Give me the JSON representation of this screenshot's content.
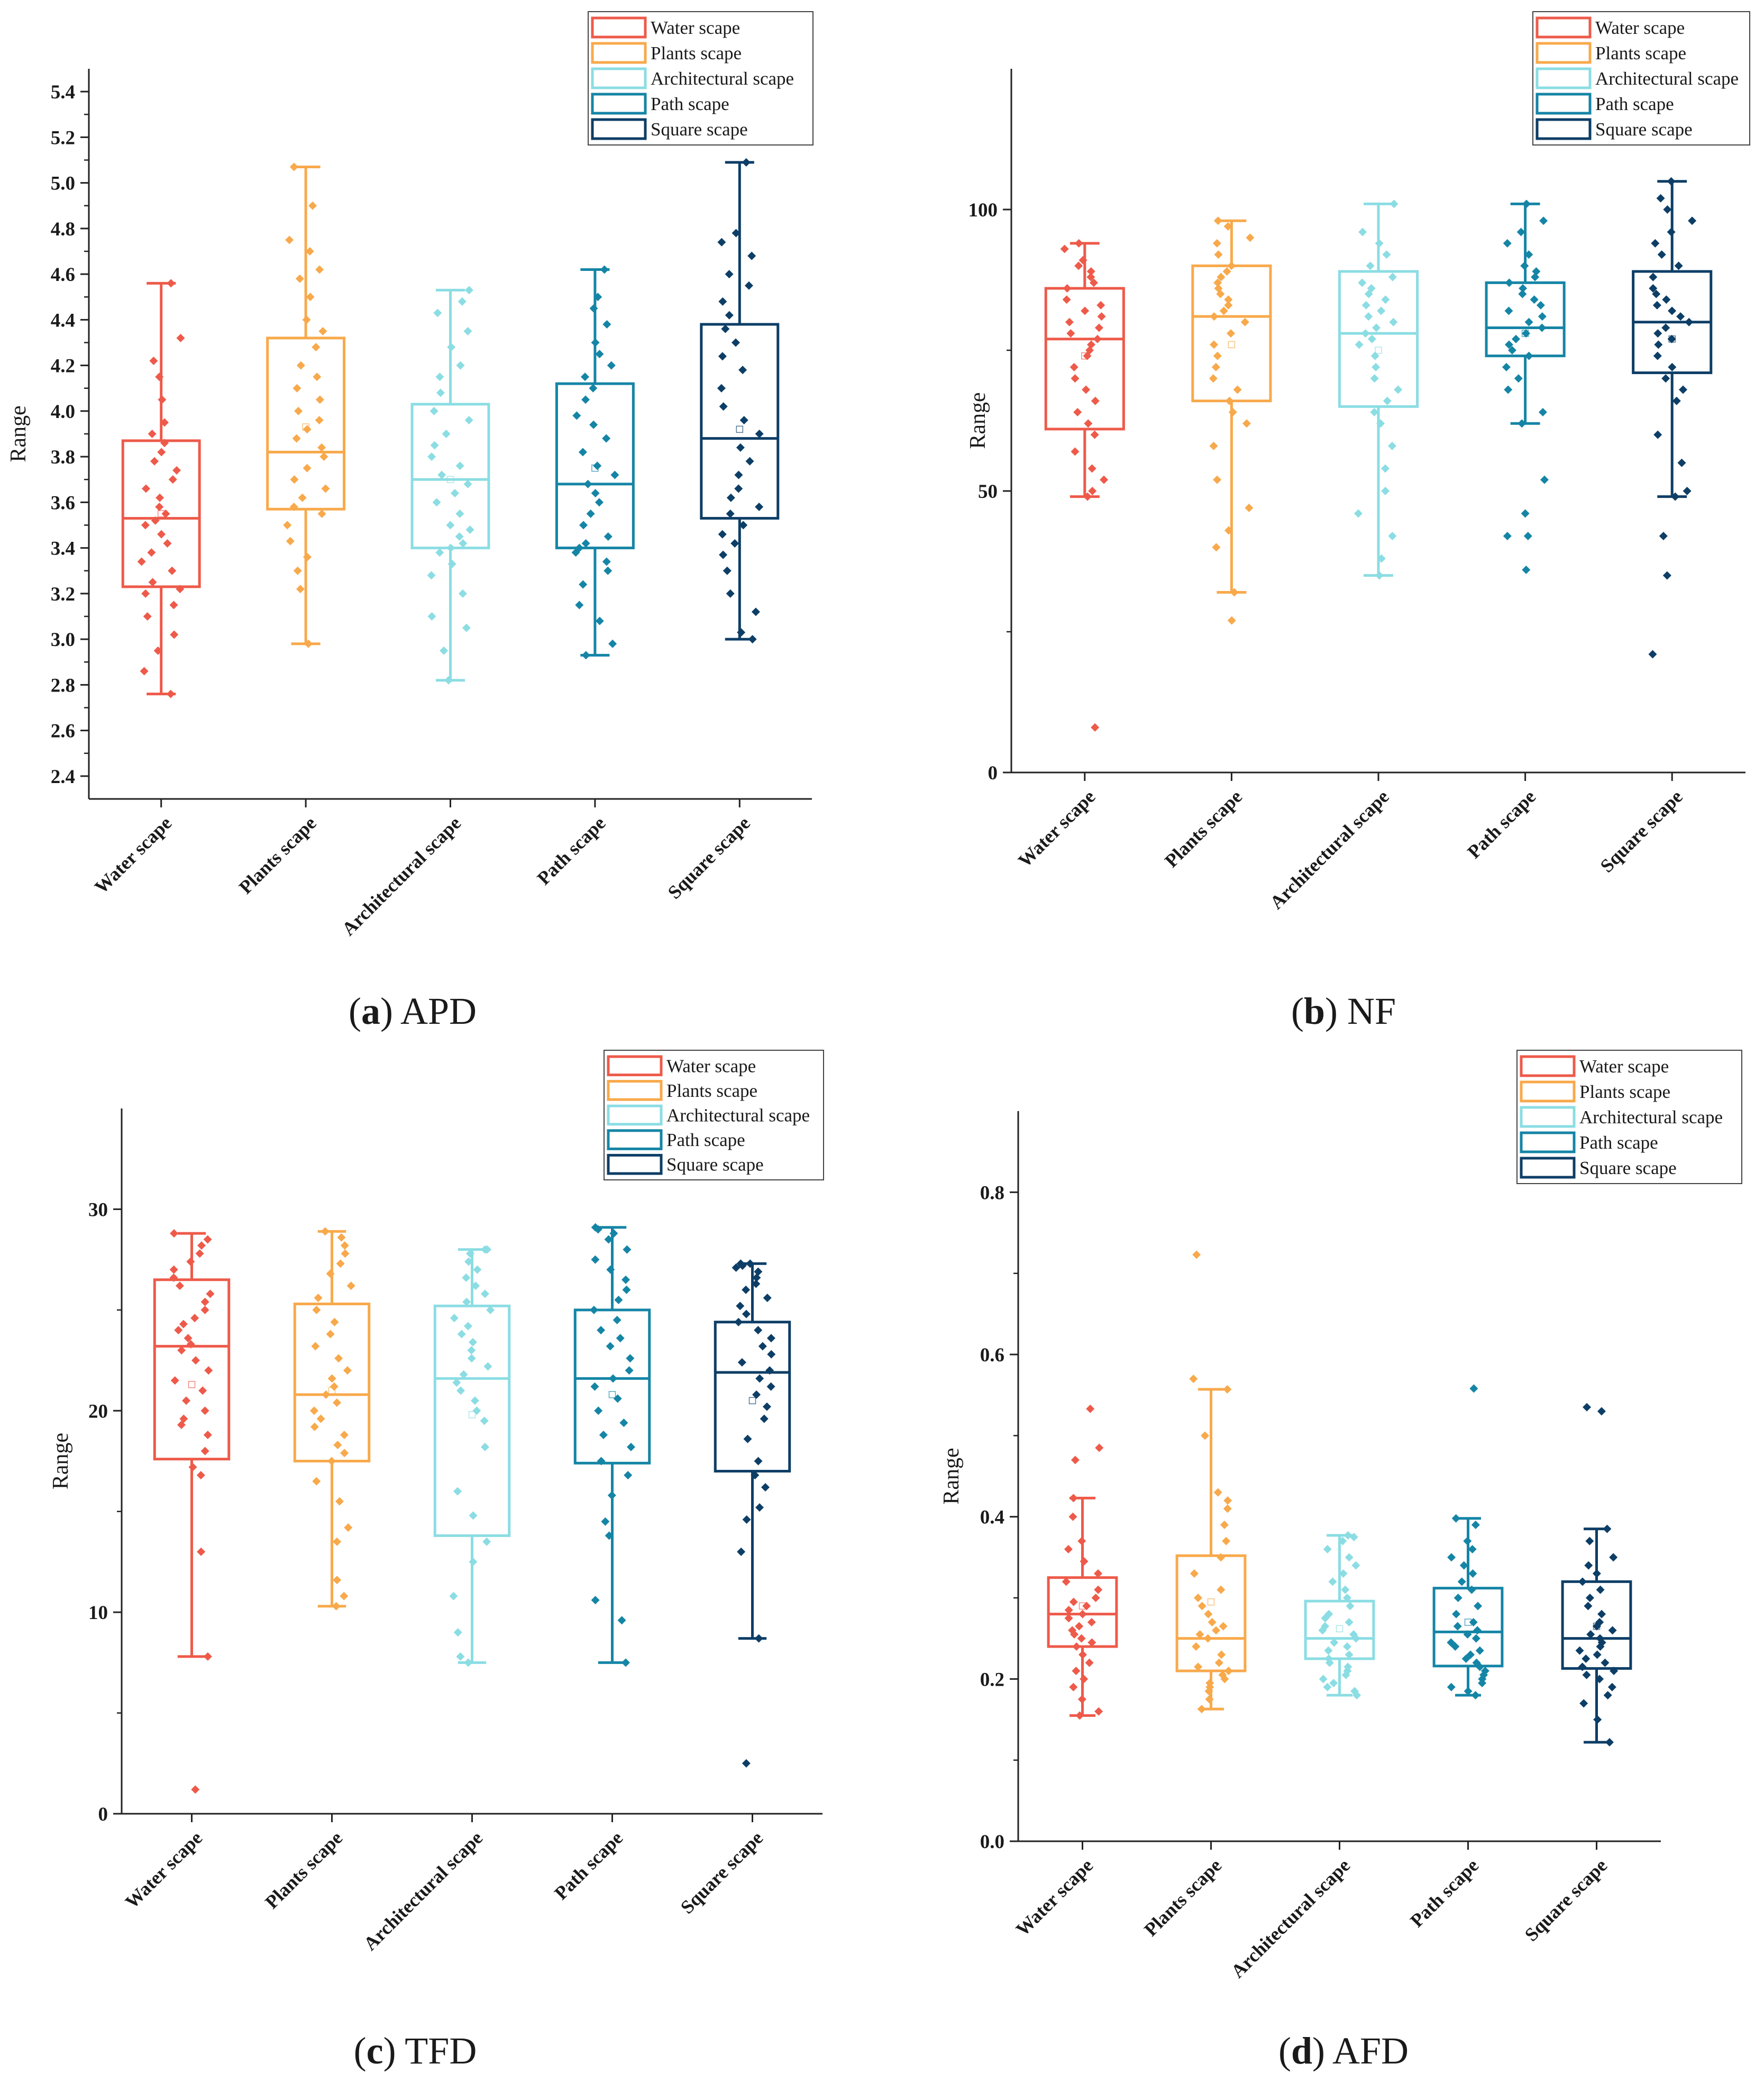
{
  "figure": {
    "caption_open": "(",
    "caption_close": ")"
  },
  "colors": {
    "water": "#ee5a4a",
    "plants": "#f8a94b",
    "architectural": "#8bdde3",
    "path": "#1585a6",
    "square": "#0d3e66"
  },
  "chart_data": [
    {
      "id": "a",
      "type": "box",
      "caption_letter": "a",
      "caption_name": "APD",
      "ylabel": "Range",
      "ylim": [
        2.3,
        5.5
      ],
      "yticks": [
        "2.4",
        "2.6",
        "2.8",
        "3.0",
        "3.2",
        "3.4",
        "3.6",
        "3.8",
        "4.0",
        "4.2",
        "4.4",
        "4.6",
        "4.8",
        "5.0",
        "5.2",
        "5.4"
      ],
      "categories": [
        "Water scape",
        "Plants scape",
        "Architectural scape",
        "Path scape",
        "Square scape"
      ],
      "legend": [
        "Water scape",
        "Plants scape",
        "Architectural scape",
        "Path scape",
        "Square scape"
      ],
      "boxes": [
        {
          "name": "Water scape",
          "whisker_low": 2.76,
          "q1": 3.23,
          "median": 3.53,
          "q3": 3.87,
          "whisker_high": 4.56,
          "mean": 3.55,
          "points": [
            2.76,
            2.86,
            2.95,
            3.02,
            3.1,
            3.15,
            3.2,
            3.22,
            3.25,
            3.3,
            3.34,
            3.38,
            3.42,
            3.46,
            3.5,
            3.52,
            3.55,
            3.58,
            3.62,
            3.66,
            3.7,
            3.74,
            3.78,
            3.82,
            3.86,
            3.9,
            3.95,
            4.05,
            4.15,
            4.22,
            4.32,
            4.56
          ]
        },
        {
          "name": "Plants scape",
          "whisker_low": 2.98,
          "q1": 3.57,
          "median": 3.82,
          "q3": 4.32,
          "whisker_high": 5.07,
          "mean": 3.93,
          "points": [
            2.98,
            3.22,
            3.3,
            3.36,
            3.43,
            3.5,
            3.55,
            3.58,
            3.62,
            3.66,
            3.7,
            3.75,
            3.8,
            3.84,
            3.88,
            3.92,
            3.96,
            4.0,
            4.05,
            4.1,
            4.15,
            4.2,
            4.28,
            4.35,
            4.4,
            4.5,
            4.58,
            4.62,
            4.7,
            4.75,
            4.9,
            5.07
          ]
        },
        {
          "name": "Architectural scape",
          "whisker_low": 2.82,
          "q1": 3.4,
          "median": 3.7,
          "q3": 4.03,
          "whisker_high": 4.53,
          "mean": 3.7,
          "points": [
            2.82,
            2.95,
            3.05,
            3.1,
            3.2,
            3.28,
            3.33,
            3.38,
            3.4,
            3.42,
            3.45,
            3.48,
            3.5,
            3.55,
            3.6,
            3.64,
            3.68,
            3.72,
            3.76,
            3.8,
            3.85,
            3.9,
            3.96,
            4.0,
            4.08,
            4.15,
            4.2,
            4.28,
            4.35,
            4.43,
            4.48,
            4.53
          ]
        },
        {
          "name": "Path scape",
          "whisker_low": 2.93,
          "q1": 3.4,
          "median": 3.68,
          "q3": 4.12,
          "whisker_high": 4.62,
          "mean": 3.75,
          "points": [
            2.93,
            2.98,
            3.08,
            3.15,
            3.24,
            3.3,
            3.34,
            3.38,
            3.4,
            3.42,
            3.45,
            3.5,
            3.55,
            3.6,
            3.64,
            3.68,
            3.72,
            3.76,
            3.82,
            3.88,
            3.94,
            3.98,
            4.05,
            4.1,
            4.15,
            4.2,
            4.25,
            4.3,
            4.38,
            4.45,
            4.5,
            4.62
          ]
        },
        {
          "name": "Square scape",
          "whisker_low": 3.0,
          "q1": 3.53,
          "median": 3.88,
          "q3": 4.38,
          "whisker_high": 5.09,
          "mean": 3.92,
          "points": [
            3.0,
            3.03,
            3.12,
            3.2,
            3.3,
            3.37,
            3.42,
            3.46,
            3.5,
            3.55,
            3.58,
            3.62,
            3.66,
            3.72,
            3.78,
            3.84,
            3.9,
            3.96,
            4.02,
            4.1,
            4.18,
            4.24,
            4.3,
            4.36,
            4.42,
            4.48,
            4.55,
            4.6,
            4.68,
            4.74,
            4.78,
            5.09
          ]
        }
      ]
    },
    {
      "id": "b",
      "type": "box",
      "caption_letter": "b",
      "caption_name": "NF",
      "ylabel": "Range",
      "ylim": [
        0,
        125
      ],
      "yticks": [
        "0",
        "50",
        "100"
      ],
      "categories": [
        "Water scape",
        "Plants scape",
        "Architectural scape",
        "Path scape",
        "Square scape"
      ],
      "legend": [
        "Water scape",
        "Plants scape",
        "Architectural scape",
        "Path scape",
        "Square scape"
      ],
      "boxes": [
        {
          "name": "Water scape",
          "whisker_low": 49,
          "q1": 61,
          "median": 77,
          "q3": 86,
          "whisker_high": 94,
          "mean": 74,
          "points": [
            8,
            49,
            50,
            52,
            54,
            57,
            60,
            62,
            64,
            66,
            68,
            70,
            72,
            74,
            75,
            76,
            77,
            78,
            79,
            80,
            81,
            82,
            83,
            84,
            86,
            87,
            88,
            89,
            90,
            91,
            93,
            94
          ]
        },
        {
          "name": "Plants scape",
          "whisker_low": 32,
          "q1": 66,
          "median": 81,
          "q3": 90,
          "whisker_high": 98,
          "mean": 76,
          "points": [
            27,
            32,
            40,
            43,
            47,
            52,
            58,
            62,
            64,
            66,
            68,
            70,
            72,
            74,
            76,
            78,
            80,
            81,
            82,
            83,
            84,
            85,
            86,
            87,
            88,
            89,
            90,
            92,
            94,
            95,
            97,
            98
          ]
        },
        {
          "name": "Architectural scape",
          "whisker_low": 35,
          "q1": 65,
          "median": 78,
          "q3": 89,
          "whisker_high": 101,
          "mean": 75,
          "points": [
            35,
            38,
            42,
            46,
            50,
            54,
            58,
            62,
            64,
            66,
            68,
            70,
            72,
            74,
            76,
            77,
            78,
            79,
            80,
            81,
            82,
            83,
            84,
            85,
            86,
            87,
            88,
            90,
            92,
            94,
            96,
            101
          ]
        },
        {
          "name": "Path scape",
          "whisker_low": 62,
          "q1": 74,
          "median": 79,
          "q3": 87,
          "whisker_high": 101,
          "mean": 78,
          "points": [
            36,
            42,
            42,
            46,
            52,
            62,
            64,
            68,
            70,
            72,
            74,
            75,
            76,
            77,
            78,
            79,
            80,
            81,
            82,
            83,
            84,
            85,
            86,
            87,
            88,
            89,
            90,
            92,
            94,
            96,
            98,
            101
          ]
        },
        {
          "name": "Square scape",
          "whisker_low": 49,
          "q1": 71,
          "median": 80,
          "q3": 89,
          "whisker_high": 105,
          "mean": 77,
          "points": [
            21,
            35,
            42,
            49,
            50,
            55,
            60,
            66,
            68,
            70,
            72,
            74,
            76,
            77,
            78,
            79,
            80,
            81,
            82,
            83,
            84,
            85,
            86,
            88,
            90,
            92,
            94,
            96,
            98,
            100,
            102,
            105
          ]
        }
      ]
    },
    {
      "id": "c",
      "type": "box",
      "caption_letter": "c",
      "caption_name": "TFD",
      "ylabel": "Range",
      "ylim": [
        0,
        35
      ],
      "yticks": [
        "0",
        "10",
        "20",
        "30"
      ],
      "categories": [
        "Water scape",
        "Plants scape",
        "Architectural scape",
        "Path scape",
        "Square scape"
      ],
      "legend": [
        "Water scape",
        "Plants scape",
        "Architectural scape",
        "Path scape",
        "Square scape"
      ],
      "boxes": [
        {
          "name": "Water scape",
          "whisker_low": 7.8,
          "q1": 17.6,
          "median": 23.2,
          "q3": 26.5,
          "whisker_high": 28.8,
          "mean": 21.3,
          "points": [
            1.2,
            7.8,
            13.0,
            16.8,
            17.2,
            18.0,
            18.8,
            19.3,
            19.6,
            20.0,
            20.5,
            21.0,
            21.5,
            22.0,
            22.5,
            23.0,
            23.3,
            23.6,
            24.0,
            24.3,
            24.6,
            25.0,
            25.4,
            25.8,
            26.2,
            26.6,
            27.0,
            27.4,
            27.8,
            28.2,
            28.5,
            28.8
          ]
        },
        {
          "name": "Plants scape",
          "whisker_low": 10.3,
          "q1": 17.5,
          "median": 20.8,
          "q3": 25.3,
          "whisker_high": 28.9,
          "mean": 21.0,
          "points": [
            10.3,
            10.8,
            11.6,
            13.5,
            14.2,
            15.5,
            16.5,
            17.5,
            17.9,
            18.3,
            18.8,
            19.2,
            19.6,
            20.0,
            20.4,
            20.8,
            21.2,
            21.6,
            22.0,
            22.6,
            23.2,
            23.8,
            24.4,
            25.0,
            25.6,
            26.2,
            26.8,
            27.3,
            27.8,
            28.2,
            28.6,
            28.9
          ]
        },
        {
          "name": "Architectural scape",
          "whisker_low": 7.5,
          "q1": 13.8,
          "median": 21.6,
          "q3": 25.2,
          "whisker_high": 28.0,
          "mean": 19.8,
          "points": [
            7.5,
            7.8,
            9.0,
            10.8,
            12.5,
            13.5,
            14.8,
            16.0,
            18.2,
            19.5,
            20.0,
            20.5,
            21.0,
            21.4,
            21.8,
            22.2,
            22.6,
            23.0,
            23.4,
            23.8,
            24.2,
            24.6,
            25.0,
            25.4,
            25.8,
            26.2,
            26.6,
            27.0,
            27.4,
            27.8,
            28.0,
            28.0
          ]
        },
        {
          "name": "Path scape",
          "whisker_low": 7.5,
          "q1": 17.4,
          "median": 21.6,
          "q3": 25.0,
          "whisker_high": 29.1,
          "mean": 20.8,
          "points": [
            7.5,
            9.6,
            10.6,
            13.8,
            14.5,
            15.8,
            16.8,
            17.5,
            18.2,
            18.8,
            19.4,
            20.0,
            20.6,
            21.2,
            21.6,
            22.0,
            22.6,
            23.2,
            23.6,
            24.0,
            24.5,
            25.0,
            25.5,
            26.0,
            26.5,
            27.0,
            27.5,
            28.0,
            28.5,
            28.8,
            29.0,
            29.1
          ]
        },
        {
          "name": "Square scape",
          "whisker_low": 8.7,
          "q1": 17.0,
          "median": 21.9,
          "q3": 24.4,
          "whisker_high": 27.3,
          "mean": 20.5,
          "points": [
            2.5,
            8.7,
            13.0,
            14.6,
            15.2,
            16.2,
            16.8,
            17.5,
            18.6,
            19.6,
            20.2,
            20.8,
            21.2,
            21.6,
            22.0,
            22.4,
            22.8,
            23.2,
            23.6,
            24.0,
            24.4,
            24.8,
            25.2,
            25.6,
            26.0,
            26.3,
            26.6,
            26.9,
            27.1,
            27.2,
            27.3,
            27.3
          ]
        }
      ]
    },
    {
      "id": "d",
      "type": "box",
      "caption_letter": "d",
      "caption_name": "AFD",
      "ylabel": "Range",
      "ylim": [
        0,
        0.9
      ],
      "yticks": [
        "0.0",
        "0.2",
        "0.4",
        "0.6",
        "0.8"
      ],
      "categories": [
        "Water scape",
        "Plants scape",
        "Architectural scape",
        "Path scape",
        "Square scape"
      ],
      "legend": [
        "Water scape",
        "Plants scape",
        "Architectural scape",
        "Path scape",
        "Square scape"
      ],
      "boxes": [
        {
          "name": "Water scape",
          "whisker_low": 0.155,
          "q1": 0.24,
          "median": 0.28,
          "q3": 0.325,
          "whisker_high": 0.423,
          "mean": 0.29,
          "points": [
            0.155,
            0.16,
            0.175,
            0.19,
            0.2,
            0.21,
            0.22,
            0.23,
            0.24,
            0.245,
            0.25,
            0.255,
            0.26,
            0.265,
            0.27,
            0.275,
            0.28,
            0.285,
            0.29,
            0.295,
            0.3,
            0.31,
            0.32,
            0.33,
            0.345,
            0.36,
            0.37,
            0.4,
            0.423,
            0.47,
            0.485,
            0.533
          ]
        },
        {
          "name": "Plants scape",
          "whisker_low": 0.163,
          "q1": 0.21,
          "median": 0.25,
          "q3": 0.352,
          "whisker_high": 0.557,
          "mean": 0.295,
          "points": [
            0.163,
            0.175,
            0.185,
            0.19,
            0.195,
            0.2,
            0.205,
            0.21,
            0.215,
            0.22,
            0.23,
            0.24,
            0.25,
            0.255,
            0.26,
            0.265,
            0.27,
            0.28,
            0.29,
            0.3,
            0.31,
            0.33,
            0.35,
            0.37,
            0.39,
            0.41,
            0.42,
            0.43,
            0.5,
            0.557,
            0.57,
            0.723
          ]
        },
        {
          "name": "Architectural scape",
          "whisker_low": 0.18,
          "q1": 0.225,
          "median": 0.25,
          "q3": 0.296,
          "whisker_high": 0.377,
          "mean": 0.262,
          "points": [
            0.18,
            0.185,
            0.19,
            0.195,
            0.2,
            0.205,
            0.21,
            0.215,
            0.22,
            0.225,
            0.23,
            0.235,
            0.24,
            0.245,
            0.25,
            0.255,
            0.26,
            0.265,
            0.27,
            0.275,
            0.28,
            0.29,
            0.3,
            0.31,
            0.32,
            0.33,
            0.34,
            0.35,
            0.36,
            0.37,
            0.375,
            0.377
          ]
        },
        {
          "name": "Path scape",
          "whisker_low": 0.18,
          "q1": 0.216,
          "median": 0.258,
          "q3": 0.312,
          "whisker_high": 0.398,
          "mean": 0.27,
          "points": [
            0.18,
            0.185,
            0.19,
            0.195,
            0.2,
            0.205,
            0.21,
            0.215,
            0.22,
            0.225,
            0.23,
            0.235,
            0.24,
            0.245,
            0.25,
            0.255,
            0.26,
            0.265,
            0.27,
            0.28,
            0.29,
            0.3,
            0.31,
            0.32,
            0.33,
            0.34,
            0.35,
            0.36,
            0.37,
            0.39,
            0.398,
            0.558
          ]
        },
        {
          "name": "Square scape",
          "whisker_low": 0.122,
          "q1": 0.213,
          "median": 0.25,
          "q3": 0.32,
          "whisker_high": 0.385,
          "mean": 0.265,
          "points": [
            0.122,
            0.15,
            0.17,
            0.18,
            0.19,
            0.2,
            0.205,
            0.21,
            0.215,
            0.22,
            0.225,
            0.23,
            0.235,
            0.24,
            0.245,
            0.25,
            0.255,
            0.26,
            0.265,
            0.27,
            0.28,
            0.29,
            0.3,
            0.31,
            0.32,
            0.33,
            0.34,
            0.35,
            0.37,
            0.385,
            0.53,
            0.535
          ]
        }
      ]
    }
  ]
}
